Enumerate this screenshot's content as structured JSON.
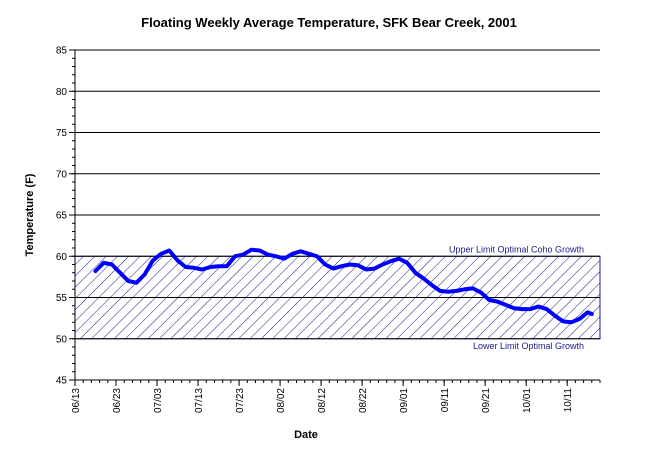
{
  "chart_data": {
    "type": "line",
    "title": "Floating Weekly Average Temperature, SFK Bear Creek, 2001",
    "x_label": "Date",
    "y_label": "Temperature (F)",
    "x": [
      "06/18",
      "06/20",
      "06/22",
      "06/24",
      "06/26",
      "06/28",
      "06/30",
      "07/02",
      "07/04",
      "07/06",
      "07/08",
      "07/10",
      "07/12",
      "07/14",
      "07/16",
      "07/18",
      "07/20",
      "07/22",
      "07/24",
      "07/26",
      "07/28",
      "07/30",
      "08/01",
      "08/03",
      "08/05",
      "08/07",
      "08/09",
      "08/11",
      "08/13",
      "08/15",
      "08/17",
      "08/19",
      "08/21",
      "08/23",
      "08/25",
      "08/27",
      "08/29",
      "08/31",
      "09/02",
      "09/04",
      "09/06",
      "09/08",
      "09/10",
      "09/12",
      "09/14",
      "09/16",
      "09/18",
      "09/20",
      "09/22",
      "09/24",
      "09/26",
      "09/28",
      "09/30",
      "10/02",
      "10/04",
      "10/06",
      "10/08",
      "10/10",
      "10/12",
      "10/14",
      "10/16",
      "10/17"
    ],
    "series": [
      {
        "name": "Temperature",
        "color": "#0000ff",
        "values": [
          58.2,
          59.2,
          59.0,
          58.0,
          57.0,
          56.8,
          57.8,
          59.5,
          60.3,
          60.7,
          59.5,
          58.7,
          58.6,
          58.4,
          58.7,
          58.8,
          58.8,
          60.0,
          60.2,
          60.8,
          60.7,
          60.2,
          60.0,
          59.7,
          60.3,
          60.6,
          60.3,
          60.0,
          59.0,
          58.5,
          58.8,
          59.0,
          58.9,
          58.4,
          58.5,
          59.0,
          59.4,
          59.7,
          59.2,
          58.0,
          57.3,
          56.5,
          55.8,
          55.7,
          55.8,
          56.0,
          56.1,
          55.6,
          54.7,
          54.5,
          54.1,
          53.7,
          53.6,
          53.6,
          53.9,
          53.6,
          52.8,
          52.1,
          52.0,
          52.4,
          53.2,
          53.0
        ]
      }
    ],
    "xlim": [
      "06/13",
      "10/19"
    ],
    "xticks": [
      "06/13",
      "06/23",
      "07/03",
      "07/13",
      "07/23",
      "08/02",
      "08/12",
      "08/22",
      "09/01",
      "09/11",
      "09/21",
      "10/01",
      "10/11"
    ],
    "ylim": [
      45,
      85
    ],
    "yticks": [
      45,
      50,
      55,
      60,
      65,
      70,
      75,
      80,
      85
    ],
    "grid": true,
    "band": {
      "range": [
        50,
        60
      ],
      "color": "#1a1a8c"
    },
    "thresholds": [
      {
        "value": 60,
        "label": "Upper Limit Optimal Coho Growth"
      },
      {
        "value": 50,
        "label": "Lower Limit Optimal Growth"
      }
    ]
  }
}
